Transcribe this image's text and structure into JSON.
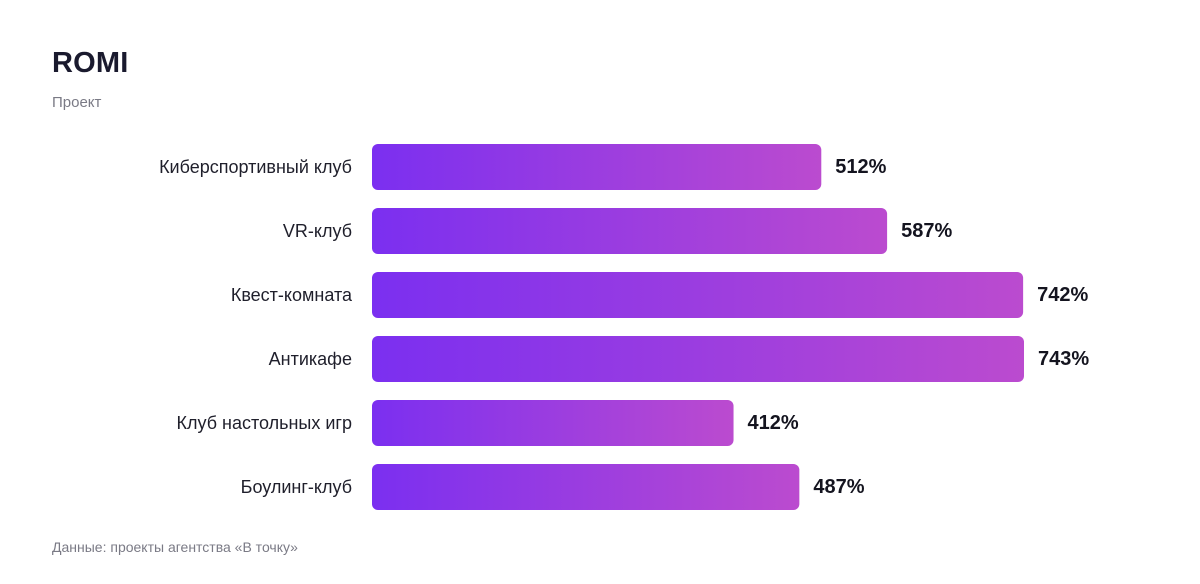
{
  "chart_data": {
    "type": "bar",
    "orientation": "horizontal",
    "title": "ROMI",
    "subtitle": "Проект",
    "categories": [
      "Киберспортивный клуб",
      "VR-клуб",
      "Квест-комната",
      "Антикафе",
      "Клуб настольных игр",
      "Боулинг-клуб"
    ],
    "values": [
      512,
      587,
      742,
      743,
      412,
      487
    ],
    "value_labels": [
      "512%",
      "587%",
      "742%",
      "743%",
      "412%",
      "487%"
    ],
    "xlim": [
      0,
      743
    ],
    "grid": false,
    "legend": "none",
    "source": "Данные: проекты агентства «В точку»"
  },
  "colors": {
    "bar_gradient_start": "#7b2ff0",
    "bar_gradient_end": "#bb4bcf"
  }
}
